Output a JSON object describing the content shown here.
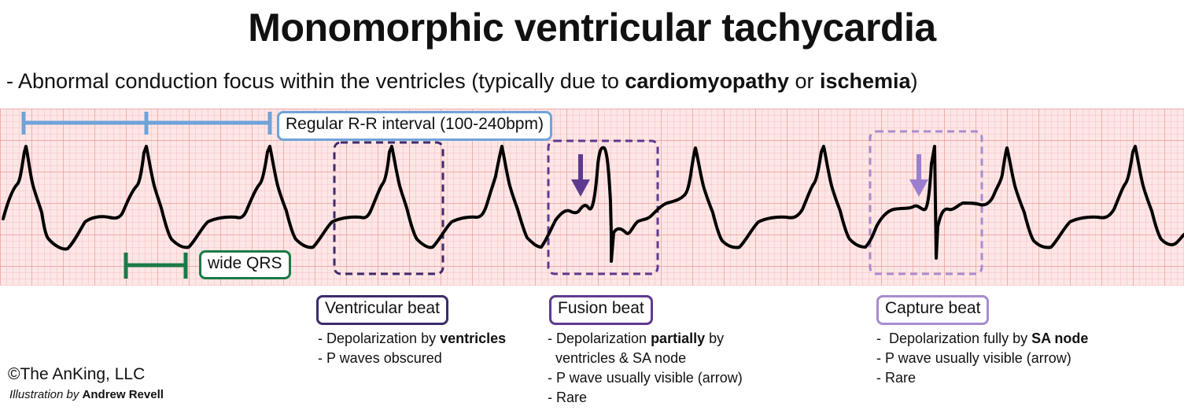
{
  "title": "Monomorphic ventricular tachycardia",
  "subtitle": {
    "prefix": "- Abnormal conduction focus within the ventricles (typically due to ",
    "term1": "cardiomyopathy",
    "middle": " or ",
    "term2": "ischemia",
    "suffix": ")"
  },
  "labels": {
    "rr_interval": "Regular R-R interval (100-240bpm)",
    "wide_qrs": "wide QRS"
  },
  "ventricular_beat": {
    "title": "Ventricular beat",
    "line1_prefix": "- Depolarization by ",
    "line1_bold": "ventricles",
    "line2": "- P waves obscured"
  },
  "fusion_beat": {
    "title": "Fusion beat",
    "line1_prefix": "- Depolarization ",
    "line1_bold": "partially",
    "line1_suffix": " by",
    "line2": "ventricles & SA node",
    "line3": "- P wave usually visible (arrow)",
    "line4": "- Rare"
  },
  "capture_beat": {
    "title": "Capture beat",
    "line1_prefix": "-  Depolarization fully by ",
    "line1_bold": "SA node",
    "line2": "- P wave usually visible (arrow)",
    "line3": "- Rare"
  },
  "footer": {
    "copyright": "©The AnKing, LLC",
    "credit_prefix": "Illustration by ",
    "credit_name": "Andrew Revell"
  },
  "colors": {
    "grid_minor": "#f7c6c6",
    "grid_major": "#ee9a9a",
    "grid_background": "#fde4e4",
    "ecg_trace": "#000000",
    "rr_bracket": "#6fa3d8",
    "qrs_bracket": "#1a7a47",
    "ventricular_box": "#3d2b6b",
    "fusion_box": "#5e3a8f",
    "capture_box": "#a98ccf",
    "fusion_arrow": "#5e3a8f",
    "capture_arrow": "#9b7fcc"
  }
}
